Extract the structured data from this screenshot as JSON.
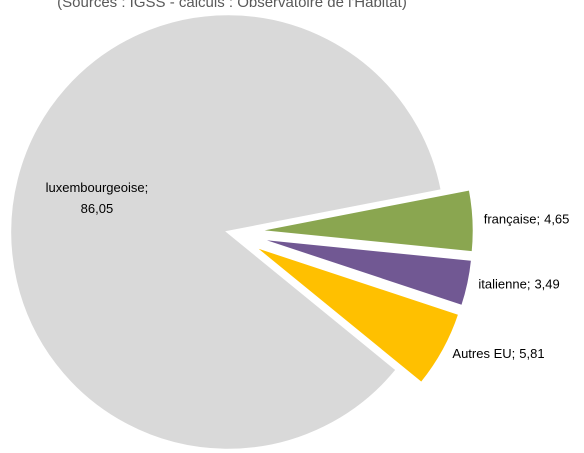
{
  "chart_data": {
    "type": "pie",
    "subtitle": "(Sources : IGSS - calculs : Observatoire de l'Habitat)",
    "categories": [
      "française",
      "italienne",
      "Autres EU",
      "luxembourgeoise"
    ],
    "values": [
      4.65,
      3.49,
      5.81,
      86.05
    ],
    "value_labels": [
      "4,65",
      "3,49",
      "5,81",
      "86,05"
    ],
    "label_separator": ";",
    "colors": [
      "#8aa650",
      "#715893",
      "#ffc000",
      "#d9d9d9"
    ]
  }
}
